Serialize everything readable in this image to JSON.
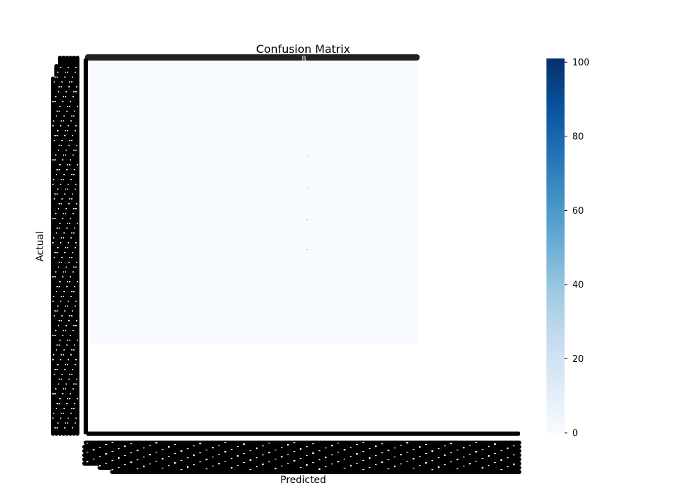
{
  "chart_data": {
    "type": "heatmap",
    "title": "Confusion Matrix",
    "xlabel": "Predicted",
    "ylabel": "Actual",
    "annotation": "8",
    "colormap": "Blues",
    "background_value": 0,
    "colorbar": {
      "min": 0,
      "max": 101,
      "ticks": [
        0,
        20,
        40,
        60,
        80,
        100
      ]
    },
    "colors": {
      "blues": [
        "#f7fbff",
        "#deebf7",
        "#c6dbef",
        "#9ecae1",
        "#6baed6",
        "#4292c6",
        "#2171b5",
        "#08519c",
        "#08306b"
      ],
      "label_clutter": "#000000",
      "top_strip": "#222222",
      "annotation": "#ffffff",
      "colorbar_tick": "#000000"
    }
  }
}
